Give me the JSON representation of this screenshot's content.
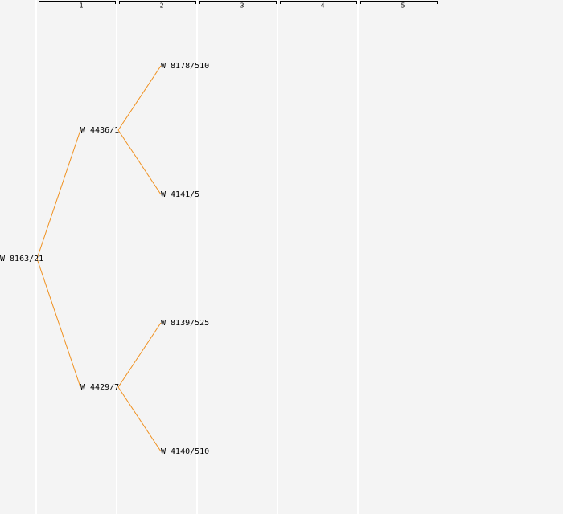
{
  "columns": [
    "1",
    "2",
    "3",
    "4",
    "5"
  ],
  "nodes": [
    {
      "label": "W 8163/21"
    },
    {
      "label": "W 4436/1"
    },
    {
      "label": "W 4429/7"
    },
    {
      "label": "W 8178/510"
    },
    {
      "label": "W 4141/5"
    },
    {
      "label": "W 8139/525"
    },
    {
      "label": "W 4140/510"
    }
  ]
}
